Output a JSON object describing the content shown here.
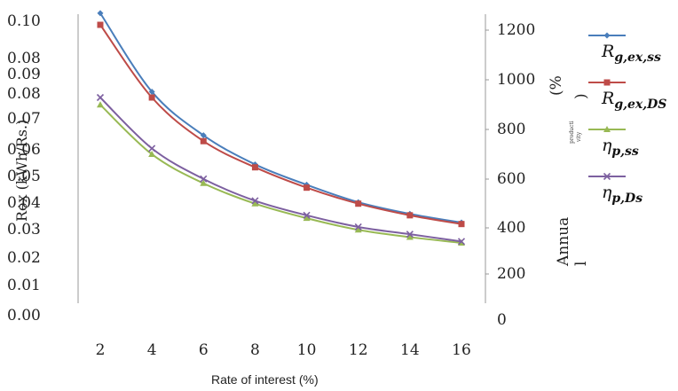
{
  "chart_data": {
    "type": "line",
    "x": [
      2,
      4,
      6,
      8,
      10,
      12,
      14,
      16
    ],
    "x_tick_labels": [
      "2",
      "4",
      "6",
      "8",
      "10",
      "12",
      "14",
      "16"
    ],
    "xlabel": "Rate of interest (%)",
    "ylabel_left": "Rex (kWh/Rs.)",
    "ylabel_right_lines": [
      "Annua",
      "l"
    ],
    "ylabel_right_fragments": [
      "(%",
      ")",
      "producti",
      "vity"
    ],
    "y_left_ticks": [
      "0.00",
      "0.01",
      "0.02",
      "0.03",
      "0.04",
      "0.05",
      "0.06",
      "0.07",
      "0.08",
      "0.09",
      "0.10"
    ],
    "y_left_visible_tick_labels": [
      "0.00",
      "0.01",
      "0.02",
      "0.03",
      "0.04",
      "0.05",
      "0.06",
      "0.07",
      "0.08",
      "0.09",
      "0.08",
      "0.10"
    ],
    "y_right_ticks": [
      "0",
      "200",
      "400",
      "600",
      "800",
      "1000",
      "1200"
    ],
    "ylim_left": [
      0,
      0.1
    ],
    "ylim_right": [
      0,
      1200
    ],
    "grid": false,
    "legend_position": "right",
    "series": [
      {
        "name": "R_{g,ex,ss}",
        "label_main": "R",
        "label_sub": "g,ex,ss",
        "color": "#4a7ebb",
        "marker": "diamond",
        "axis": "left",
        "values": [
          0.104,
          0.077,
          0.062,
          0.052,
          0.045,
          0.039,
          0.035,
          0.032
        ]
      },
      {
        "name": "R_{g,ex,DS}",
        "label_main": "R",
        "label_sub": "g,ex,DS",
        "color": "#be4b48",
        "marker": "square",
        "axis": "left",
        "values": [
          0.1,
          0.075,
          0.06,
          0.051,
          0.044,
          0.0385,
          0.0345,
          0.0315
        ]
      },
      {
        "name": "η_{p,ss}",
        "label_main": "η",
        "label_sub": "p,ss",
        "color": "#98b954",
        "marker": "triangle",
        "axis": "left",
        "values": [
          0.0725,
          0.0555,
          0.0455,
          0.0385,
          0.0335,
          0.0295,
          0.027,
          0.025
        ]
      },
      {
        "name": "η_{p,Ds}",
        "label_main": "η",
        "label_sub": "p,Ds",
        "color": "#7d60a0",
        "marker": "x",
        "axis": "left",
        "values": [
          0.075,
          0.0575,
          0.047,
          0.0395,
          0.0345,
          0.0305,
          0.028,
          0.0255
        ]
      }
    ]
  }
}
